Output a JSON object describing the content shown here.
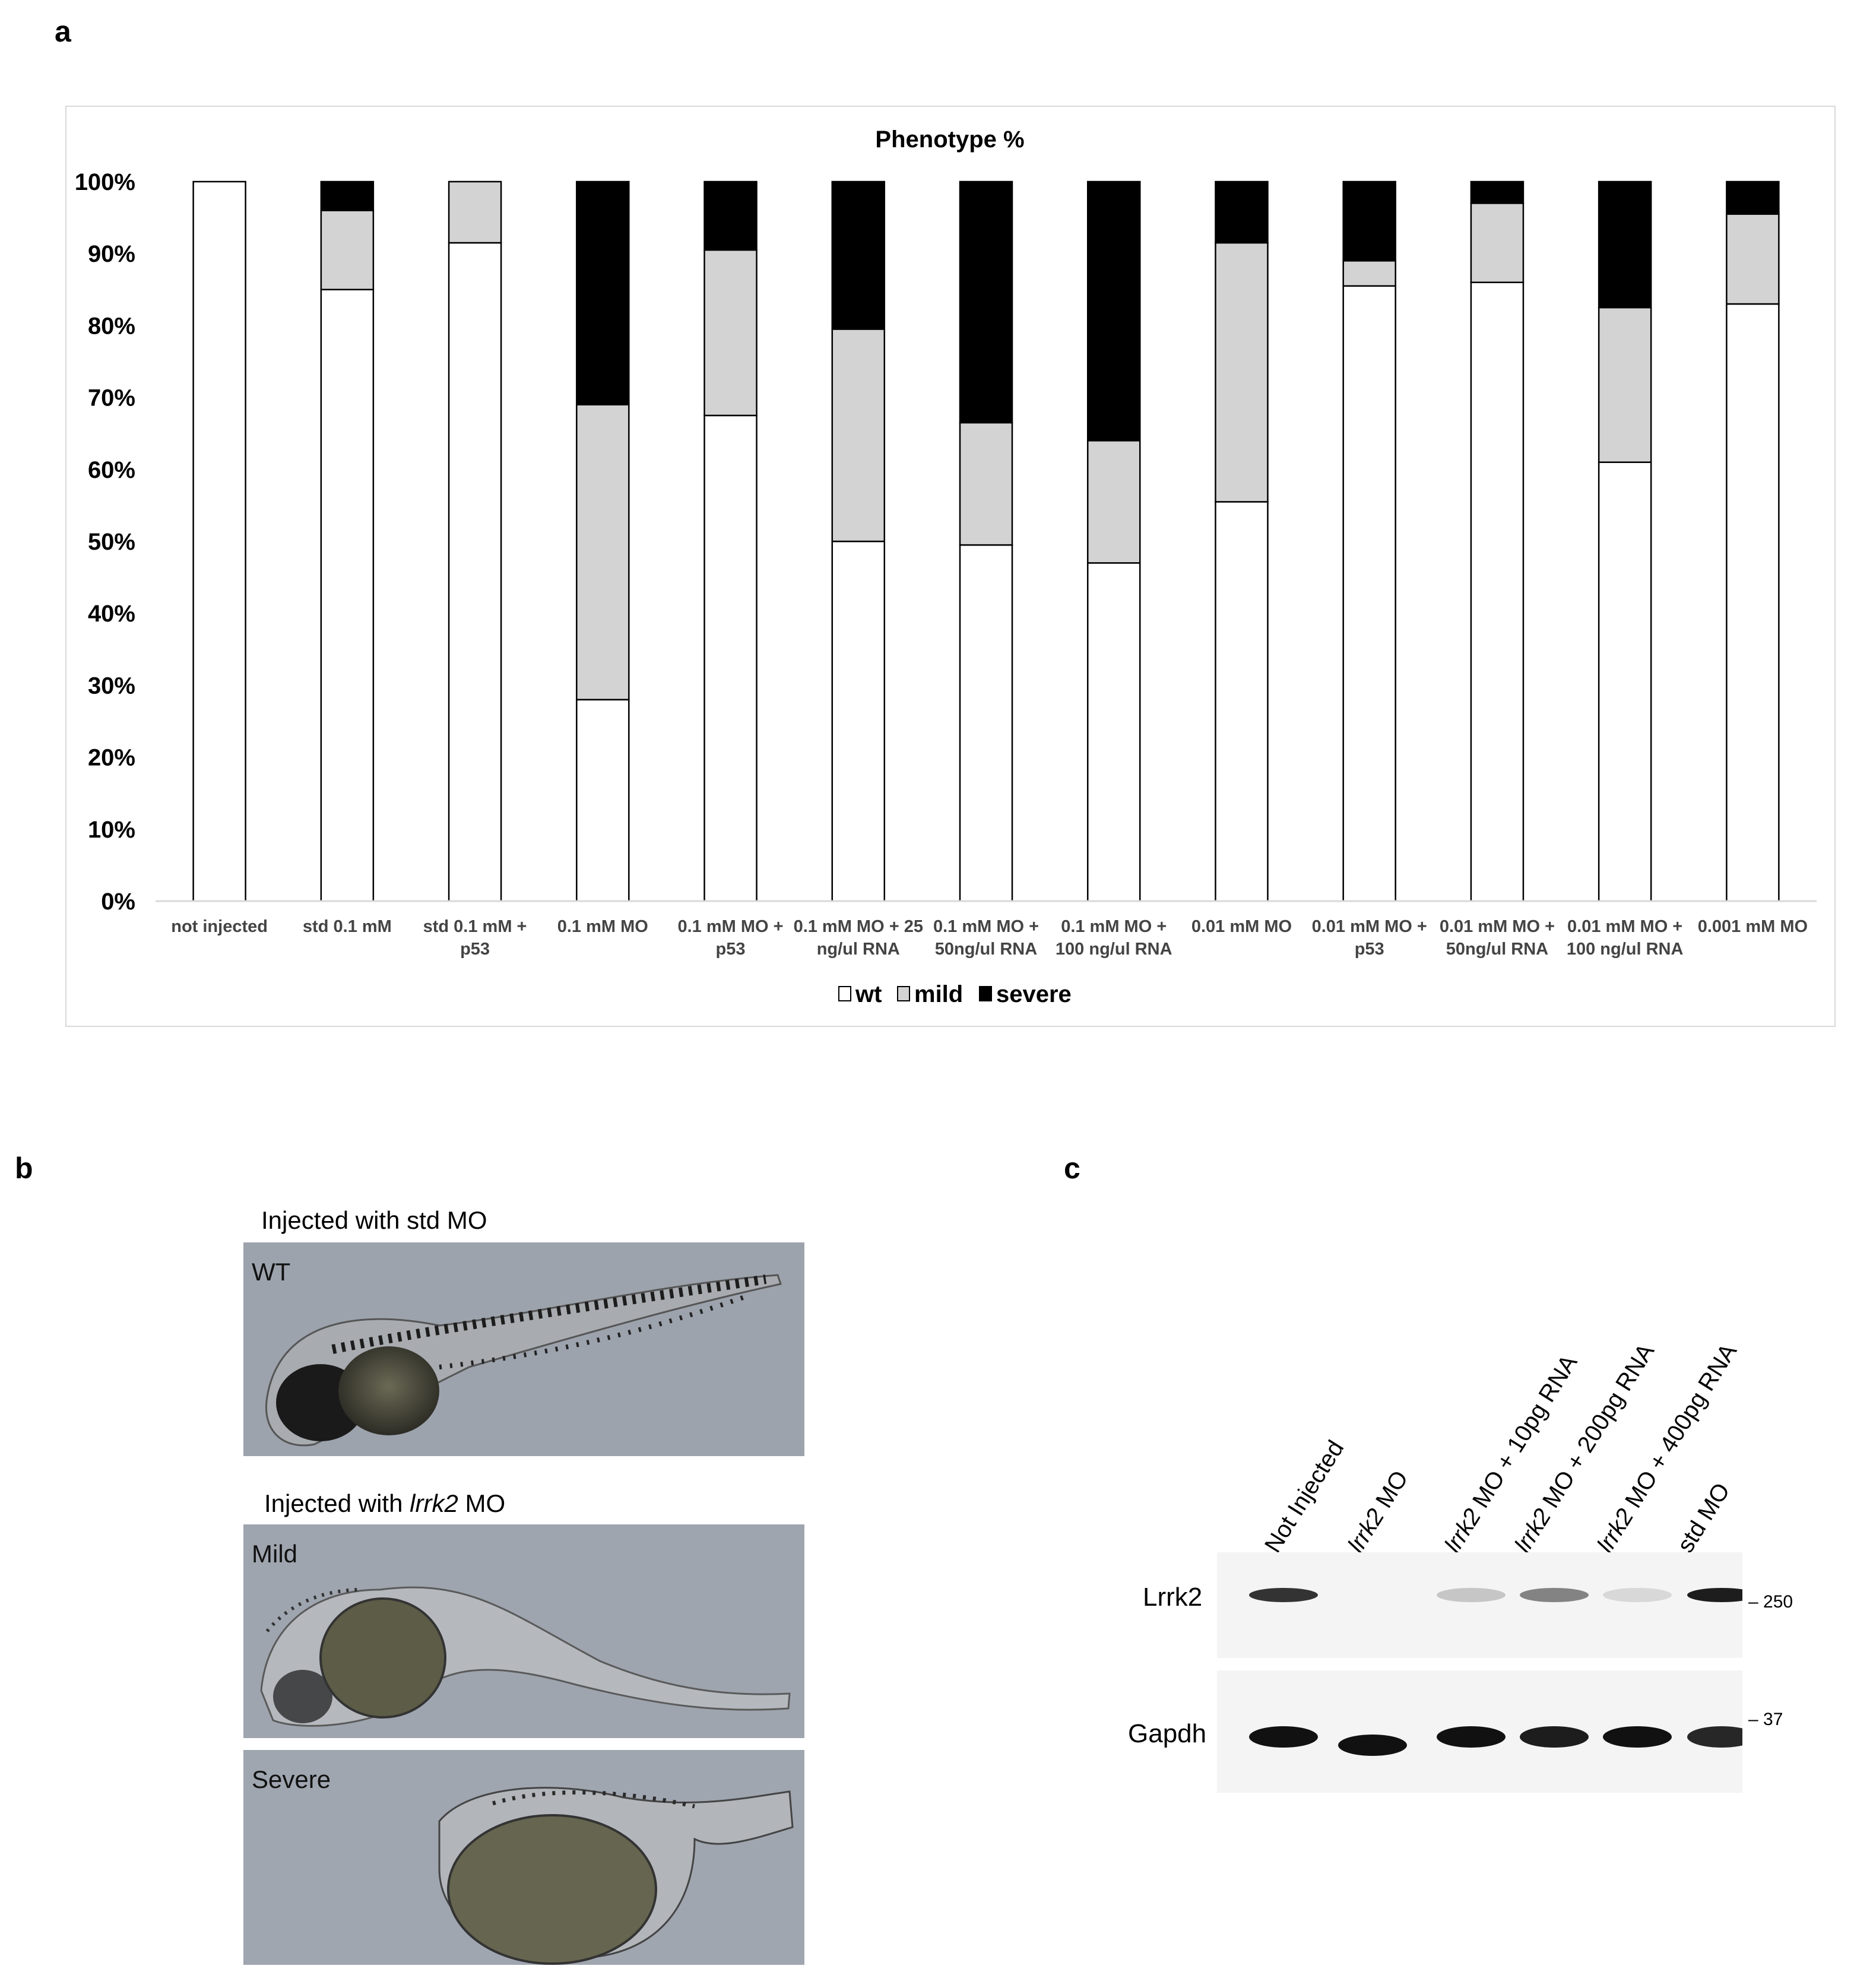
{
  "panels": {
    "a": "a",
    "b": "b",
    "c": "c"
  },
  "chart_data": {
    "type": "bar",
    "stacked": true,
    "title": "Phenotype %",
    "categories": [
      "not injected",
      "std 0.1 mM",
      "std  0.1 mM + p53",
      "0.1 mM MO",
      "0.1 mM MO + p53",
      "0.1 mM MO + 25 ng/ul RNA",
      "0.1 mM MO + 50ng/ul RNA",
      "0.1 mM MO + 100 ng/ul RNA",
      "0.01 mM MO",
      "0.01 mM MO + p53",
      "0.01 mM MO + 50ng/ul RNA",
      "0.01 mM MO + 100 ng/ul RNA",
      "0.001 mM MO"
    ],
    "category_lines": [
      [
        "not injected"
      ],
      [
        "std 0.1 mM"
      ],
      [
        "std  0.1 mM +",
        "p53"
      ],
      [
        "0.1 mM MO"
      ],
      [
        "0.1 mM MO +",
        "p53"
      ],
      [
        "0.1 mM MO + 25",
        "ng/ul RNA"
      ],
      [
        "0.1 mM MO +",
        "50ng/ul RNA"
      ],
      [
        "0.1 mM MO +",
        "100 ng/ul RNA"
      ],
      [
        "0.01 mM MO"
      ],
      [
        "0.01 mM MO +",
        "p53"
      ],
      [
        "0.01 mM MO +",
        "50ng/ul RNA"
      ],
      [
        "0.01 mM MO +",
        "100 ng/ul RNA"
      ],
      [
        "0.001 mM MO"
      ]
    ],
    "series": [
      {
        "name": "wt",
        "color": "#ffffff",
        "values": [
          100,
          85,
          91.5,
          28,
          67.5,
          50,
          49.5,
          47,
          55.5,
          85.5,
          86,
          61,
          83
        ]
      },
      {
        "name": "mild",
        "color": "#d3d3d3",
        "values": [
          0,
          11,
          8.5,
          41,
          23,
          29.5,
          17,
          17,
          36,
          3.5,
          11,
          21.5,
          12.5
        ]
      },
      {
        "name": "severe",
        "color": "#000000",
        "values": [
          0,
          4,
          0,
          31,
          9.5,
          20.5,
          33.5,
          36,
          8.5,
          11,
          3,
          17.5,
          4.5
        ]
      }
    ],
    "y_ticks": [
      "0%",
      "10%",
      "20%",
      "30%",
      "40%",
      "50%",
      "60%",
      "70%",
      "80%",
      "90%",
      "100%"
    ],
    "ylim": [
      0,
      100
    ],
    "legend": [
      "wt",
      "mild",
      "severe"
    ],
    "legend_position": "bottom"
  },
  "panel_b": {
    "caption_std": "Injected with std MO",
    "caption_lrrk2_prefix": "Injected with ",
    "caption_lrrk2_italic": "lrrk2",
    "caption_lrrk2_suffix": " MO",
    "images": {
      "wt": "WT",
      "mild": "Mild",
      "severe": "Severe"
    }
  },
  "panel_c": {
    "lanes": [
      {
        "italic": "",
        "text": "Not Injected"
      },
      {
        "italic": "lrrk2",
        "text": " MO"
      },
      {
        "italic": "lrrk2",
        "text": " MO + 10pg RNA"
      },
      {
        "italic": "lrrk2",
        "text": " MO + 200pg RNA"
      },
      {
        "italic": "lrrk2",
        "text": " MO + 400pg RNA"
      },
      {
        "italic": "",
        "text": "std MO"
      }
    ],
    "rows": {
      "lrrk2": "Lrrk2",
      "gapdh": "Gapdh"
    },
    "markers": {
      "lrrk2": "250",
      "gapdh": "37"
    },
    "lrrk2_band_intensity": [
      0.85,
      0,
      0.2,
      0.5,
      0.12,
      0.95
    ],
    "gapdh_band_intensity": [
      1,
      1,
      1,
      0.95,
      1,
      0.9
    ]
  }
}
